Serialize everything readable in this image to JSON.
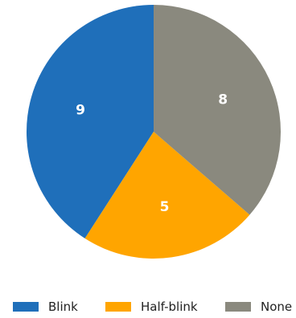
{
  "chart_data": {
    "type": "pie",
    "categories": [
      "Blink",
      "Half-blink",
      "None"
    ],
    "values": [
      9,
      5,
      8
    ],
    "colors": [
      "#1f6fba",
      "#ffa500",
      "#8a897e"
    ],
    "data_labels": [
      "9",
      "5",
      "8"
    ],
    "start_angle_deg": 90,
    "direction": "counterclockwise",
    "legend": "bottom",
    "title": ""
  }
}
